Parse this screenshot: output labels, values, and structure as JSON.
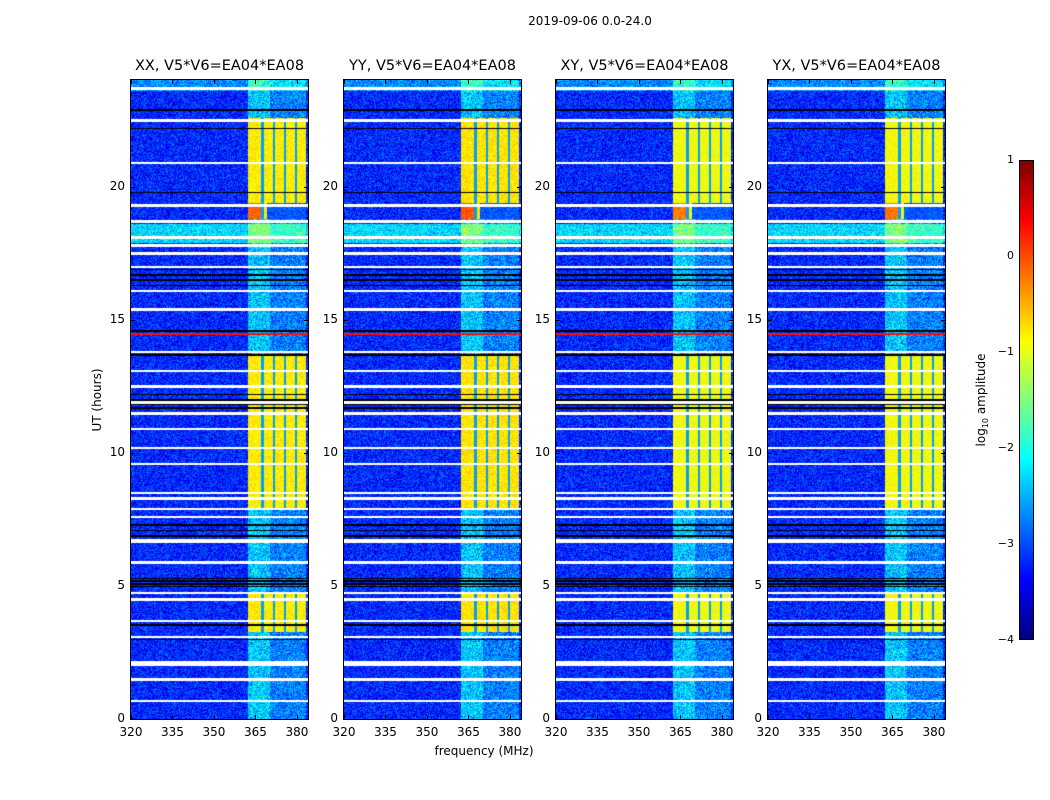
{
  "chart_data": {
    "type": "heatmap",
    "title": "2019-09-06 0.0-24.0",
    "xlabel": "frequency (MHz)",
    "ylabel": "UT (hours)",
    "xlim": [
      320,
      384
    ],
    "ylim": [
      0,
      24
    ],
    "xticks": [
      "320",
      "335",
      "350",
      "365",
      "380"
    ],
    "xtick_values": [
      320,
      335,
      350,
      365,
      380
    ],
    "yticks": [
      "0",
      "5",
      "10",
      "15",
      "20"
    ],
    "ytick_values": [
      0,
      5,
      10,
      15,
      20
    ],
    "panels": [
      {
        "title": "XX, V5*V6=EA04*EA08",
        "band_strength": 1.0
      },
      {
        "title": "YY, V5*V6=EA04*EA08",
        "band_strength": 1.1
      },
      {
        "title": "XY, V5*V6=EA04*EA08",
        "band_strength": 0.75
      },
      {
        "title": "YX, V5*V6=EA04*EA08",
        "band_strength": 0.8
      }
    ],
    "background_log10_amplitude": -3.2,
    "bright_band_MHz": [
      362,
      383
    ],
    "bright_periods_hours": [
      [
        3.3,
        4.8
      ],
      [
        7.9,
        13.7
      ],
      [
        18.8,
        22.6
      ]
    ],
    "flagged_white_hours": [
      0.7,
      1.5,
      2.1,
      3.1,
      3.7,
      4.5,
      4.75,
      5.9,
      6.7,
      7.6,
      7.9,
      8.3,
      8.5,
      9.6,
      10.2,
      10.9,
      11.5,
      11.9,
      12.5,
      13.1,
      13.8,
      15.4,
      16.1,
      17.0,
      17.5,
      17.8,
      18.1,
      18.7,
      19.3,
      20.9,
      22.5,
      23.7
    ],
    "flagged_black_hours": [
      3.0,
      3.55,
      5.0,
      5.1,
      5.2,
      5.3,
      6.9,
      7.1,
      7.3,
      11.7,
      11.85,
      12.0,
      12.2,
      13.7,
      14.6,
      16.3,
      16.5,
      16.7,
      16.9,
      19.8,
      22.2,
      22.9
    ],
    "rfi_red_hours": [
      14.48
    ],
    "colorbar": {
      "label_prefix": "log",
      "label_sub": "10",
      "label_suffix": " amplitude",
      "ticks": [
        "1",
        "0",
        "−1",
        "−2",
        "−3",
        "−4"
      ],
      "tick_values": [
        1,
        0,
        -1,
        -2,
        -3,
        -4
      ],
      "range": [
        -4,
        1
      ],
      "colormap": "jet"
    }
  }
}
